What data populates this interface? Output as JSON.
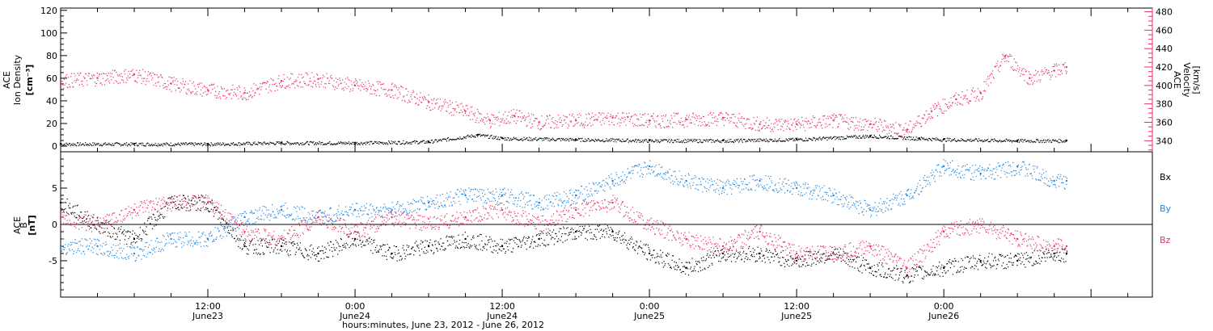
{
  "chart_data": [
    {
      "type": "scatter",
      "panel": "top",
      "left_axis": {
        "label_lines": [
          "ACE",
          "Ion Density"
        ],
        "unit": "[cm⁻³]",
        "ylim": [
          -5,
          122
        ],
        "ticks": [
          "0",
          "20",
          "40",
          "60",
          "80",
          "100",
          "120"
        ],
        "tick_values": [
          0,
          20,
          40,
          60,
          80,
          100,
          120
        ]
      },
      "right_axis": {
        "label_lines": [
          "ACE",
          "Velocity",
          "[km/s]"
        ],
        "color": "#e8325f",
        "ylim": [
          328,
          484
        ],
        "ticks": [
          "340",
          "360",
          "380",
          "400",
          "420",
          "440",
          "460",
          "480"
        ],
        "tick_values": [
          340,
          360,
          380,
          400,
          420,
          440,
          460,
          480
        ]
      },
      "series": [
        {
          "name": "",
          "color": "#000000",
          "axis": "left",
          "x_hours": [
            0,
            6,
            12,
            18,
            24,
            30,
            34,
            36,
            42,
            48,
            54,
            60,
            66,
            70,
            72,
            78,
            82
          ],
          "values": [
            2,
            2,
            2,
            3,
            3,
            4,
            10,
            7,
            6,
            5,
            5,
            6,
            9,
            7,
            6,
            5,
            5
          ]
        },
        {
          "name": "",
          "color": "#e8325f",
          "axis": "right",
          "x_hours": [
            0,
            3,
            6,
            9,
            12,
            15,
            18,
            21,
            24,
            27,
            30,
            33,
            35,
            37,
            39,
            42,
            45,
            48,
            51,
            54,
            57,
            60,
            63,
            66,
            69,
            71,
            73,
            75,
            77,
            79,
            81,
            82
          ],
          "values": [
            405,
            408,
            412,
            402,
            395,
            392,
            405,
            407,
            400,
            395,
            382,
            372,
            362,
            367,
            360,
            362,
            365,
            362,
            363,
            365,
            358,
            358,
            362,
            358,
            352,
            372,
            385,
            392,
            432,
            408,
            416,
            420
          ]
        }
      ]
    },
    {
      "type": "scatter",
      "panel": "bottom",
      "left_axis": {
        "label_lines": [
          "ACE",
          "B"
        ],
        "unit": "[nT]",
        "ylim": [
          -10,
          10
        ],
        "ticks": [
          "-5",
          "0",
          "5"
        ],
        "tick_values": [
          -5,
          0,
          5
        ]
      },
      "legend": [
        "Bx",
        "By",
        "Bz"
      ],
      "legend_position": "right",
      "series": [
        {
          "name": "Bx",
          "color": "#000000",
          "x_hours": [
            0,
            3,
            6,
            9,
            12,
            15,
            18,
            21,
            24,
            27,
            30,
            33,
            36,
            39,
            42,
            45,
            48,
            51,
            54,
            57,
            60,
            63,
            66,
            69,
            72,
            75,
            78,
            81,
            82
          ],
          "values": [
            3,
            0,
            -2,
            3,
            3,
            -3,
            -3,
            -4,
            -2,
            -4,
            -3,
            -2,
            -3,
            -2,
            -1,
            -1,
            -4,
            -6,
            -4,
            -4,
            -5,
            -4,
            -6,
            -7,
            -6,
            -5,
            -5,
            -4,
            -4
          ]
        },
        {
          "name": "By",
          "color": "#1f86e0",
          "x_hours": [
            0,
            3,
            6,
            9,
            12,
            15,
            18,
            21,
            24,
            27,
            30,
            33,
            36,
            39,
            42,
            45,
            48,
            51,
            54,
            57,
            60,
            63,
            66,
            69,
            72,
            75,
            78,
            81,
            82
          ],
          "values": [
            -3,
            -3,
            -4,
            -2,
            -2,
            1,
            2,
            1,
            2,
            2,
            3,
            4,
            4,
            3,
            4,
            6,
            8,
            6,
            5,
            6,
            5,
            4,
            2,
            4,
            8,
            7,
            8,
            6,
            6
          ]
        },
        {
          "name": "Bz",
          "color": "#e8325f",
          "x_hours": [
            0,
            3,
            6,
            9,
            12,
            15,
            18,
            21,
            24,
            27,
            30,
            33,
            36,
            39,
            42,
            45,
            48,
            51,
            54,
            57,
            60,
            63,
            66,
            69,
            72,
            75,
            78,
            81,
            82
          ],
          "values": [
            1,
            0,
            2,
            3,
            3,
            -1,
            -2,
            1,
            -1,
            1,
            0,
            1,
            2,
            0,
            2,
            3,
            0,
            -2,
            -3,
            -1,
            -4,
            -4,
            -3,
            -6,
            -1,
            0,
            -2,
            -3,
            -3
          ]
        }
      ]
    }
  ],
  "x_axis": {
    "xlim_hours": [
      0,
      89
    ],
    "ticks": [
      {
        "hour": 12,
        "time": "12:00",
        "date": "June23"
      },
      {
        "hour": 24,
        "time": "0:00",
        "date": "June24"
      },
      {
        "hour": 36,
        "time": "12:00",
        "date": "June24"
      },
      {
        "hour": 48,
        "time": "0:00",
        "date": "June25"
      },
      {
        "hour": 60,
        "time": "12:00",
        "date": "June25"
      },
      {
        "hour": 72,
        "time": "0:00",
        "date": "June26"
      }
    ],
    "title": "hours:minutes, June 23, 2012 - June 26, 2012"
  },
  "colors": {
    "black": "#000000",
    "blue": "#1f86e0",
    "red": "#e8325f"
  }
}
